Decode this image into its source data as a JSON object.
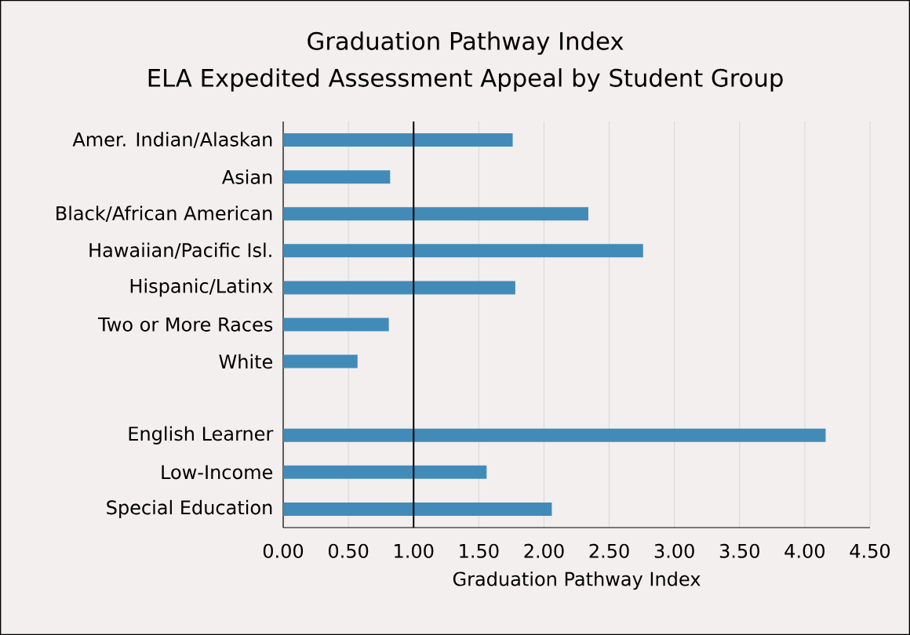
{
  "chart_data": {
    "type": "bar",
    "orientation": "horizontal",
    "title": "Graduation Pathway Index",
    "subtitle": "ELA Expedited Assessment Appeal by Student Group",
    "xlabel": "Graduation Pathway Index",
    "categories": [
      "Amer. Indian/Alaskan",
      "Asian",
      "Black/African American",
      "Hawaiian/Pacific Isl.",
      "Hispanic/Latinx",
      "Two or More Races",
      "White",
      null,
      "English Learner",
      "Low-Income",
      "Special Education"
    ],
    "values": [
      1.76,
      0.82,
      2.34,
      2.76,
      1.78,
      0.81,
      0.57,
      null,
      4.16,
      1.56,
      2.06
    ],
    "color": "#428bb8",
    "xlim": [
      0,
      4.5
    ],
    "xticks": [
      {
        "value": 0,
        "label": "0.00"
      },
      {
        "value": 0.5,
        "label": "0.50"
      },
      {
        "value": 1,
        "label": "1.00"
      },
      {
        "value": 1.5,
        "label": "1.50"
      },
      {
        "value": 2,
        "label": "2.00"
      },
      {
        "value": 2.5,
        "label": "2.50"
      },
      {
        "value": 3,
        "label": "3.00"
      },
      {
        "value": 3.5,
        "label": "3.50"
      },
      {
        "value": 4,
        "label": "4.00"
      },
      {
        "value": 4.5,
        "label": "4.50"
      }
    ],
    "grid": "x",
    "ref_lines": [
      {
        "axis": "x",
        "value": 1,
        "color": "#000000"
      }
    ]
  }
}
